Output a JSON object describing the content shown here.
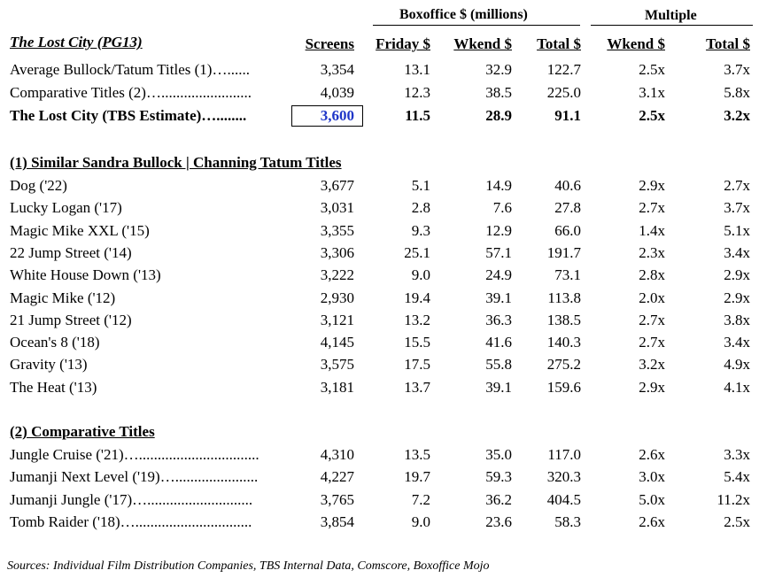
{
  "header": {
    "boxoffice_group": "Boxoffice $ (millions)",
    "multiple_group": "Multiple",
    "title": "The Lost City (PG13)",
    "col_screens": "Screens",
    "col_friday": "Friday $",
    "col_wkend": "Wkend $",
    "col_total": "Total $",
    "col_mult_wkend": "Wkend $",
    "col_mult_total": "Total $"
  },
  "summary": [
    {
      "label": "Average Bullock/Tatum Titles (1)…......",
      "screens": "3,354",
      "friday": "13.1",
      "wkend": "32.9",
      "total": "122.7",
      "mult_wkend": "2.5x",
      "mult_total": "3.7x"
    },
    {
      "label": "Comparative Titles (2)…........................",
      "screens": "4,039",
      "friday": "12.3",
      "wkend": "38.5",
      "total": "225.0",
      "mult_wkend": "3.1x",
      "mult_total": "5.8x"
    },
    {
      "label": "The Lost City (TBS Estimate)…........",
      "screens": "3,600",
      "friday": "11.5",
      "wkend": "28.9",
      "total": "91.1",
      "mult_wkend": "2.5x",
      "mult_total": "3.2x"
    }
  ],
  "section1": {
    "title": "(1) Similar Sandra Bullock | Channing Tatum Titles",
    "rows": [
      {
        "label": "Dog ('22)",
        "screens": "3,677",
        "friday": "5.1",
        "wkend": "14.9",
        "total": "40.6",
        "mult_wkend": "2.9x",
        "mult_total": "2.7x"
      },
      {
        "label": "Lucky Logan ('17)",
        "screens": "3,031",
        "friday": "2.8",
        "wkend": "7.6",
        "total": "27.8",
        "mult_wkend": "2.7x",
        "mult_total": "3.7x"
      },
      {
        "label": "Magic Mike XXL ('15)",
        "screens": "3,355",
        "friday": "9.3",
        "wkend": "12.9",
        "total": "66.0",
        "mult_wkend": "1.4x",
        "mult_total": "5.1x"
      },
      {
        "label": "22 Jump Street ('14)",
        "screens": "3,306",
        "friday": "25.1",
        "wkend": "57.1",
        "total": "191.7",
        "mult_wkend": "2.3x",
        "mult_total": "3.4x"
      },
      {
        "label": "White House Down ('13)",
        "screens": "3,222",
        "friday": "9.0",
        "wkend": "24.9",
        "total": "73.1",
        "mult_wkend": "2.8x",
        "mult_total": "2.9x"
      },
      {
        "label": "Magic Mike ('12)",
        "screens": "2,930",
        "friday": "19.4",
        "wkend": "39.1",
        "total": "113.8",
        "mult_wkend": "2.0x",
        "mult_total": "2.9x"
      },
      {
        "label": "21 Jump Street ('12)",
        "screens": "3,121",
        "friday": "13.2",
        "wkend": "36.3",
        "total": "138.5",
        "mult_wkend": "2.7x",
        "mult_total": "3.8x"
      },
      {
        "label": "Ocean's 8 ('18)",
        "screens": "4,145",
        "friday": "15.5",
        "wkend": "41.6",
        "total": "140.3",
        "mult_wkend": "2.7x",
        "mult_total": "3.4x"
      },
      {
        "label": "Gravity ('13)",
        "screens": "3,575",
        "friday": "17.5",
        "wkend": "55.8",
        "total": "275.2",
        "mult_wkend": "3.2x",
        "mult_total": "4.9x"
      },
      {
        "label": "The Heat ('13)",
        "screens": "3,181",
        "friday": "13.7",
        "wkend": "39.1",
        "total": "159.6",
        "mult_wkend": "2.9x",
        "mult_total": "4.1x"
      }
    ]
  },
  "section2": {
    "title": "(2) Comparative Titles",
    "rows": [
      {
        "label": "Jungle Cruise ('21)…................................",
        "screens": "4,310",
        "friday": "13.5",
        "wkend": "35.0",
        "total": "117.0",
        "mult_wkend": "2.6x",
        "mult_total": "3.3x"
      },
      {
        "label": "Jumanji Next Level ('19)…......................",
        "screens": "4,227",
        "friday": "19.7",
        "wkend": "59.3",
        "total": "320.3",
        "mult_wkend": "3.0x",
        "mult_total": "5.4x"
      },
      {
        "label": "Jumanji Jungle ('17)…............................",
        "screens": "3,765",
        "friday": "7.2",
        "wkend": "36.2",
        "total": "404.5",
        "mult_wkend": "5.0x",
        "mult_total": "11.2x"
      },
      {
        "label": "Tomb Raider ('18)…...............................",
        "screens": "3,854",
        "friday": "9.0",
        "wkend": "23.6",
        "total": "58.3",
        "mult_wkend": "2.6x",
        "mult_total": "2.5x"
      }
    ]
  },
  "footer": "Sources:  Individual Film Distribution Companies, TBS Internal Data, Comscore, Boxoffice Mojo",
  "colors": {
    "highlight_text": "#1f36c8"
  }
}
